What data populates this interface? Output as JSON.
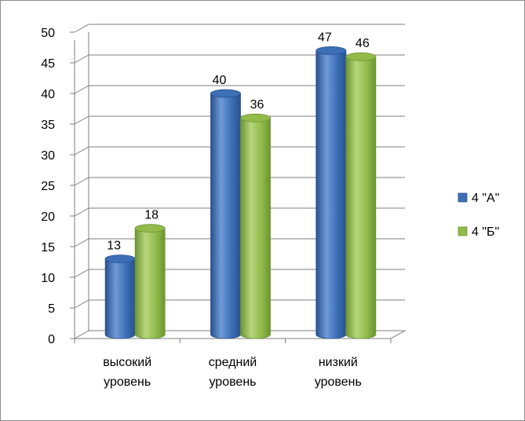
{
  "chart_data": {
    "type": "bar",
    "categories": [
      [
        "высокий",
        "уровень"
      ],
      [
        "средний",
        "уровень"
      ],
      [
        "низкий",
        "уровень"
      ]
    ],
    "series": [
      {
        "name": "4 \"А\"",
        "values": [
          13,
          40,
          47
        ],
        "color": "#3d6fb6",
        "color_dark": "#28518f",
        "color_light": "#6f9ad8"
      },
      {
        "name": "4 \"Б\"",
        "values": [
          18,
          36,
          46
        ],
        "color": "#92bb4a",
        "color_dark": "#6d9432",
        "color_light": "#b7d67c"
      }
    ],
    "ylim": [
      0,
      50
    ],
    "yticks": [
      0,
      5,
      10,
      15,
      20,
      25,
      30,
      35,
      40,
      45,
      50
    ],
    "grid": true,
    "legend_position": "right",
    "title": "",
    "xlabel": "",
    "ylabel": ""
  }
}
